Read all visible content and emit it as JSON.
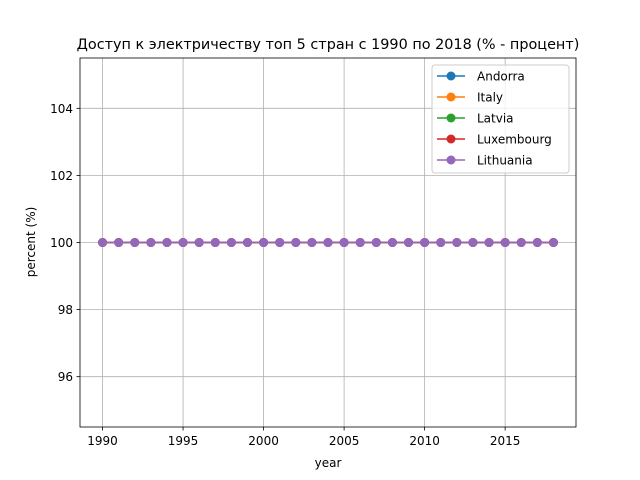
{
  "chart_data": {
    "type": "line",
    "title": "Доступ к электричеству топ 5 стран с 1990 по 2018 (% - процент)",
    "xlabel": "year",
    "ylabel": "percent (%)",
    "xlim": [
      1988.6,
      2019.4
    ],
    "ylim": [
      94.5,
      105.5
    ],
    "xticks": [
      1990,
      1995,
      2000,
      2005,
      2010,
      2015
    ],
    "yticks": [
      96,
      98,
      100,
      102,
      104
    ],
    "grid": true,
    "legend_position": "top-right",
    "x": [
      1990,
      1991,
      1992,
      1993,
      1994,
      1995,
      1996,
      1997,
      1998,
      1999,
      2000,
      2001,
      2002,
      2003,
      2004,
      2005,
      2006,
      2007,
      2008,
      2009,
      2010,
      2011,
      2012,
      2013,
      2014,
      2015,
      2016,
      2017,
      2018
    ],
    "series": [
      {
        "name": "Andorra",
        "color": "#1f77b4",
        "values": [
          100,
          100,
          100,
          100,
          100,
          100,
          100,
          100,
          100,
          100,
          100,
          100,
          100,
          100,
          100,
          100,
          100,
          100,
          100,
          100,
          100,
          100,
          100,
          100,
          100,
          100,
          100,
          100,
          100
        ]
      },
      {
        "name": "Italy",
        "color": "#ff7f0e",
        "values": [
          100,
          100,
          100,
          100,
          100,
          100,
          100,
          100,
          100,
          100,
          100,
          100,
          100,
          100,
          100,
          100,
          100,
          100,
          100,
          100,
          100,
          100,
          100,
          100,
          100,
          100,
          100,
          100,
          100
        ]
      },
      {
        "name": "Latvia",
        "color": "#2ca02c",
        "values": [
          100,
          100,
          100,
          100,
          100,
          100,
          100,
          100,
          100,
          100,
          100,
          100,
          100,
          100,
          100,
          100,
          100,
          100,
          100,
          100,
          100,
          100,
          100,
          100,
          100,
          100,
          100,
          100,
          100
        ]
      },
      {
        "name": "Luxembourg",
        "color": "#d62728",
        "values": [
          100,
          100,
          100,
          100,
          100,
          100,
          100,
          100,
          100,
          100,
          100,
          100,
          100,
          100,
          100,
          100,
          100,
          100,
          100,
          100,
          100,
          100,
          100,
          100,
          100,
          100,
          100,
          100,
          100
        ]
      },
      {
        "name": "Lithuania",
        "color": "#9467bd",
        "values": [
          100,
          100,
          100,
          100,
          100,
          100,
          100,
          100,
          100,
          100,
          100,
          100,
          100,
          100,
          100,
          100,
          100,
          100,
          100,
          100,
          100,
          100,
          100,
          100,
          100,
          100,
          100,
          100,
          100
        ]
      }
    ]
  }
}
